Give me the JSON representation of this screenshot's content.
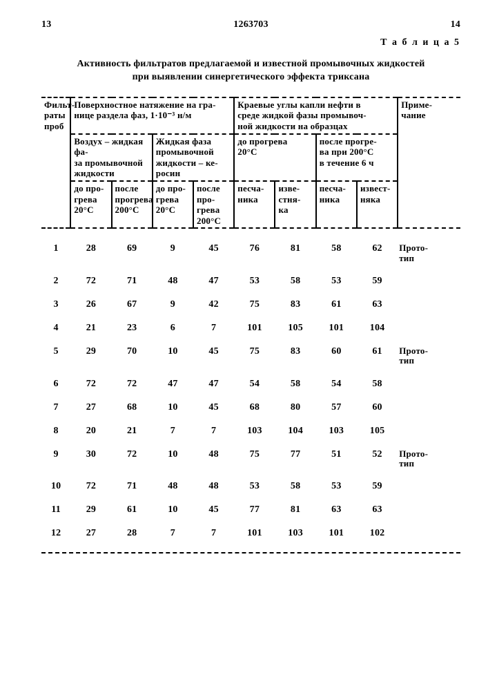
{
  "page_left": "13",
  "patent_no": "1263703",
  "page_right": "14",
  "table_label": "Т а б л и ц а   5",
  "caption_l1": "Активность фильтратов предлагаемой и известной промывочных жидкостей",
  "caption_l2": "при выявлении синергетического эффекта триксана",
  "h_filtraty": "Фильт-\nраты\nпроб",
  "h_surface": "Поверхностное натяжение на гра-\nнице раздела фаз, 1·10⁻³ н/м",
  "h_angles": "Краевые углы капли нефти в\nсреде жидкой фазы промывоч-\nной жидкости на образцах",
  "h_prim": "Приме-\nчание",
  "h_air": "Воздух – жидкая фа-\nза промывочной\nжидкости",
  "h_kerosin": "Жидкая фаза\nпромывочной\nжидкости – ке-\nросин",
  "h_do20_a": "до прогрева\n20°С",
  "h_posle_a": "после прогре-\nва при 200°С\nв течение 6 ч",
  "h_do20": "до про-\nгрева\n20°С",
  "h_posle200": "после\nпрогрева\n200°С",
  "h_do20_2": "до про-\nгрева\n20°С",
  "h_posle200_2": "после\nпро-\nгрева\n200°С",
  "h_pes": "песча-\nника",
  "h_izv": "изве-\nстня-\nка",
  "h_pes2": "песча-\nника",
  "h_izv2": "извест-\nняка",
  "rows": [
    {
      "n": "1",
      "a": "28",
      "b": "69",
      "c": "9",
      "d": "45",
      "e": "76",
      "f": "81",
      "g": "58",
      "h": "62",
      "note": "Прото-\nтип"
    },
    {
      "n": "2",
      "a": "72",
      "b": "71",
      "c": "48",
      "d": "47",
      "e": "53",
      "f": "58",
      "g": "53",
      "h": "59",
      "note": ""
    },
    {
      "n": "3",
      "a": "26",
      "b": "67",
      "c": "9",
      "d": "42",
      "e": "75",
      "f": "83",
      "g": "61",
      "h": "63",
      "note": ""
    },
    {
      "n": "4",
      "a": "21",
      "b": "23",
      "c": "6",
      "d": "7",
      "e": "101",
      "f": "105",
      "g": "101",
      "h": "104",
      "note": ""
    },
    {
      "n": "5",
      "a": "29",
      "b": "70",
      "c": "10",
      "d": "45",
      "e": "75",
      "f": "83",
      "g": "60",
      "h": "61",
      "note": "Прото-\nтип"
    },
    {
      "n": "6",
      "a": "72",
      "b": "72",
      "c": "47",
      "d": "47",
      "e": "54",
      "f": "58",
      "g": "54",
      "h": "58",
      "note": ""
    },
    {
      "n": "7",
      "a": "27",
      "b": "68",
      "c": "10",
      "d": "45",
      "e": "68",
      "f": "80",
      "g": "57",
      "h": "60",
      "note": ""
    },
    {
      "n": "8",
      "a": "20",
      "b": "21",
      "c": "7",
      "d": "7",
      "e": "103",
      "f": "104",
      "g": "103",
      "h": "105",
      "note": ""
    },
    {
      "n": "9",
      "a": "30",
      "b": "72",
      "c": "10",
      "d": "48",
      "e": "75",
      "f": "77",
      "g": "51",
      "h": "52",
      "note": "Прото-\nтип"
    },
    {
      "n": "10",
      "a": "72",
      "b": "71",
      "c": "48",
      "d": "48",
      "e": "53",
      "f": "58",
      "g": "53",
      "h": "59",
      "note": ""
    },
    {
      "n": "11",
      "a": "29",
      "b": "61",
      "c": "10",
      "d": "45",
      "e": "77",
      "f": "81",
      "g": "63",
      "h": "63",
      "note": ""
    },
    {
      "n": "12",
      "a": "27",
      "b": "28",
      "c": "7",
      "d": "7",
      "e": "101",
      "f": "103",
      "g": "101",
      "h": "102",
      "note": ""
    }
  ]
}
